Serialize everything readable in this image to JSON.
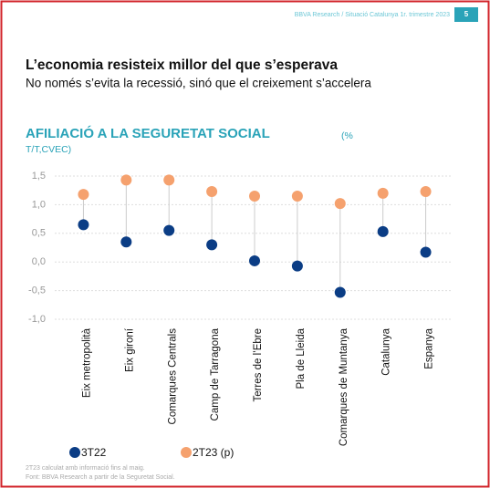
{
  "header": {
    "source": "BBVA Research / Situació Catalunya 1r. trimestre 2023",
    "page": "5"
  },
  "title": "L’economia resisteix millor del que s’esperava",
  "subtitle": "No només s’evita la recessió, sinó que el creixement s’accelera",
  "chart_data": {
    "type": "dot",
    "title": "AFILIACIÓ A LA SEGURETAT SOCIAL",
    "unit": "(% T/T,CVEC)",
    "categories": [
      "Eix metropolità",
      "Eix gironí",
      "Comarques Centrals",
      "Camp de Tarragona",
      "Terres de l’Ebre",
      "Pla de Lleida",
      "Comarques de Muntanya",
      "Catalunya",
      "Espanya"
    ],
    "series": [
      {
        "name": "3T22",
        "color": "#0b3d85",
        "values": [
          0.65,
          0.35,
          0.55,
          0.3,
          0.02,
          -0.07,
          -0.53,
          0.53,
          0.17
        ]
      },
      {
        "name": "2T23 (p)",
        "color": "#f5a16e",
        "values": [
          1.18,
          1.43,
          1.43,
          1.23,
          1.15,
          1.15,
          1.02,
          1.2,
          1.23
        ]
      }
    ],
    "ylim": [
      -1.0,
      1.5
    ],
    "yticks": [
      {
        "value": 1.5,
        "label": "1,5"
      },
      {
        "value": 1.0,
        "label": "1,0"
      },
      {
        "value": 0.5,
        "label": "0,5"
      },
      {
        "value": 0.0,
        "label": "0,0"
      },
      {
        "value": -0.5,
        "label": "-0,5"
      },
      {
        "value": -1.0,
        "label": "-1,0"
      }
    ],
    "grid": true,
    "notes": [
      "2T23 calculat amb informació fins al maig.",
      "Font: BBVA Research a partir de la Seguretat Social."
    ]
  }
}
